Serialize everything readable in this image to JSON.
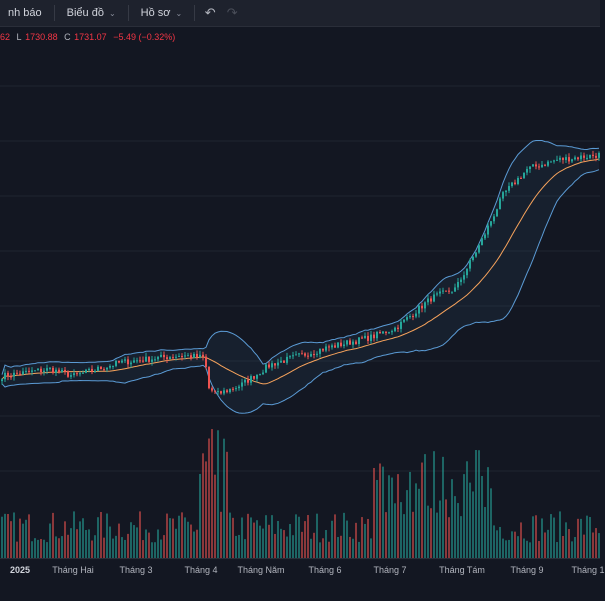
{
  "toolbar": {
    "alerts_label": "nh báo",
    "chart_label": "Biểu đồ",
    "profile_label": "Hồ sơ",
    "undo_icon": "undo-icon",
    "redo_icon": "redo-icon"
  },
  "legend": {
    "high_tail": "62",
    "low_label": "L",
    "low_value": "1730.88",
    "close_label": "C",
    "close_value": "1731.07",
    "change": "−5.49 (−0.32%)"
  },
  "colors": {
    "background": "#131722",
    "up": "#26a69a",
    "down": "#ef5350",
    "band": "#5b9bd5",
    "basis": "#f7a35c"
  },
  "chart_data": {
    "type": "candlestick",
    "x_axis_labels": [
      "2025",
      "Tháng Hai",
      "Tháng 3",
      "Tháng 4",
      "Tháng Năm",
      "Tháng 6",
      "Tháng 7",
      "Tháng Tám",
      "Tháng 9",
      "Tháng 1"
    ],
    "last_close": 1731.07,
    "last_change": -5.49,
    "last_change_pct": -0.32,
    "close_trajectory": [
      [
        0,
        1250
      ],
      [
        0.08,
        1265
      ],
      [
        0.12,
        1250
      ],
      [
        0.2,
        1280
      ],
      [
        0.3,
        1295
      ],
      [
        0.34,
        1290
      ],
      [
        0.345,
        1225
      ],
      [
        0.36,
        1210
      ],
      [
        0.4,
        1230
      ],
      [
        0.45,
        1275
      ],
      [
        0.54,
        1310
      ],
      [
        0.62,
        1335
      ],
      [
        0.66,
        1355
      ],
      [
        0.72,
        1420
      ],
      [
        0.76,
        1440
      ],
      [
        0.8,
        1535
      ],
      [
        0.84,
        1645
      ],
      [
        0.88,
        1700
      ],
      [
        0.93,
        1720
      ],
      [
        1,
        1731
      ]
    ],
    "volume_relative_peaks": {
      "april_low": 1.0,
      "july_august_mid": 0.85,
      "typical": 0.3
    },
    "indicator": "Bollinger Bands"
  }
}
